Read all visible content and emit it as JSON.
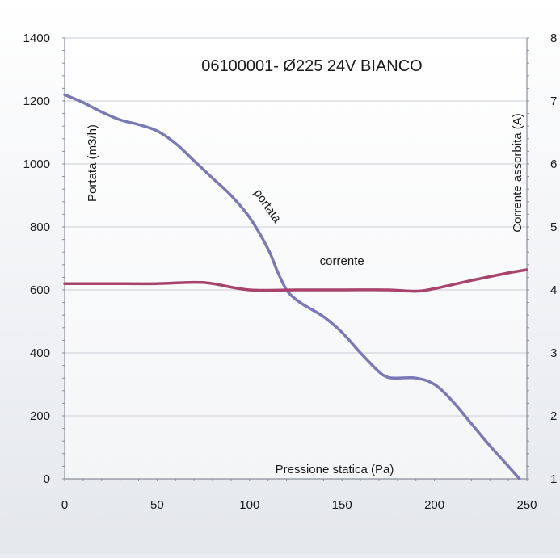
{
  "chart_data": {
    "type": "line",
    "title": "06100001- Ø225 24V BIANCO",
    "xlabel": "Pressione statica (Pa)",
    "ylabel_left": "Portata (m3/h)",
    "ylabel_right": "Corrente assorbita (A)",
    "xlim": [
      0,
      250
    ],
    "ylim_left": [
      0,
      1400
    ],
    "ylim_right": [
      1,
      8
    ],
    "x_ticks": [
      0,
      50,
      100,
      150,
      200,
      250
    ],
    "y_left_ticks": [
      0,
      200,
      400,
      600,
      800,
      1000,
      1200,
      1400
    ],
    "y_right_ticks": [
      1,
      2,
      3,
      4,
      5,
      6,
      7,
      8
    ],
    "grid": true,
    "series": [
      {
        "name": "portata",
        "axis": "left",
        "color": "#7b78b8",
        "points": [
          [
            0,
            1220
          ],
          [
            10,
            1195
          ],
          [
            20,
            1165
          ],
          [
            30,
            1140
          ],
          [
            40,
            1125
          ],
          [
            50,
            1105
          ],
          [
            60,
            1065
          ],
          [
            70,
            1010
          ],
          [
            80,
            955
          ],
          [
            90,
            900
          ],
          [
            100,
            830
          ],
          [
            110,
            730
          ],
          [
            115,
            660
          ],
          [
            120,
            600
          ],
          [
            125,
            570
          ],
          [
            130,
            550
          ],
          [
            140,
            515
          ],
          [
            150,
            465
          ],
          [
            160,
            400
          ],
          [
            170,
            340
          ],
          [
            175,
            322
          ],
          [
            180,
            320
          ],
          [
            190,
            320
          ],
          [
            200,
            300
          ],
          [
            210,
            245
          ],
          [
            220,
            175
          ],
          [
            230,
            105
          ],
          [
            240,
            40
          ],
          [
            246,
            0
          ]
        ]
      },
      {
        "name": "corrente",
        "axis": "right",
        "color": "#a8436e",
        "points": [
          [
            0,
            4.1
          ],
          [
            25,
            4.1
          ],
          [
            50,
            4.1
          ],
          [
            70,
            4.12
          ],
          [
            80,
            4.1
          ],
          [
            100,
            4.0
          ],
          [
            125,
            4.0
          ],
          [
            150,
            4.0
          ],
          [
            175,
            4.0
          ],
          [
            190,
            3.98
          ],
          [
            200,
            4.02
          ],
          [
            220,
            4.15
          ],
          [
            240,
            4.27
          ],
          [
            250,
            4.32
          ]
        ]
      }
    ],
    "annotations": [
      {
        "text": "portata",
        "x": 108,
        "y": 860,
        "axis": "left",
        "rotate": 55
      },
      {
        "text": "corrente",
        "x": 150,
        "y": 680,
        "axis": "left",
        "rotate": 0
      }
    ]
  }
}
